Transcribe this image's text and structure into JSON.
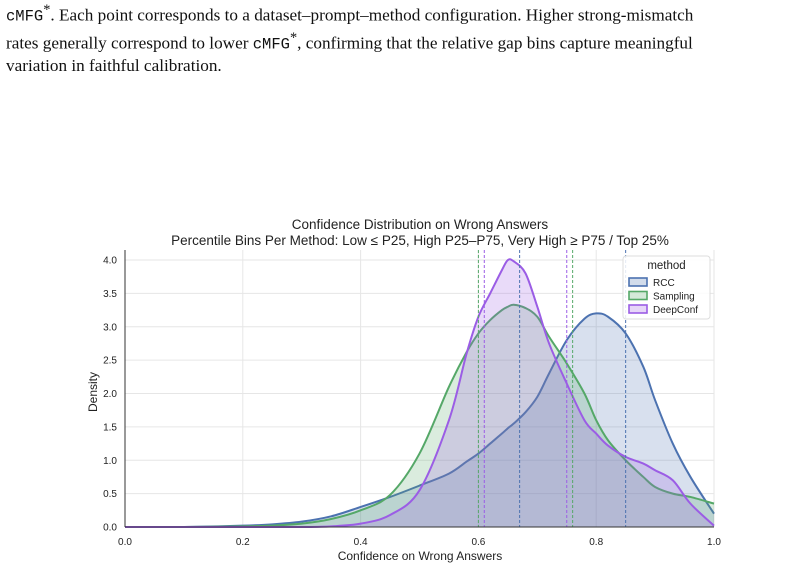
{
  "caption": {
    "line1_mono": "cMFG",
    "line1_sup": "*",
    "line1_text": ". Each point corresponds to a dataset–prompt–method configuration. Higher strong-mismatch",
    "line2_text_a": "rates generally correspond to lower ",
    "line2_mono": "cMFG",
    "line2_sup": "*",
    "line2_text_b": ", confirming that the relative gap bins capture meaningful",
    "line3_text": "variation in faithful calibration."
  },
  "chart_data": {
    "type": "area",
    "title": "Confidence Distribution on Wrong Answers",
    "subtitle": "Percentile Bins Per Method: Low ≤ P25, High P25–P75, Very High ≥ P75 / Top 25%",
    "xlabel": "Confidence on Wrong Answers",
    "ylabel": "Density",
    "xlim": [
      0.0,
      1.0
    ],
    "ylim": [
      0.0,
      4.15
    ],
    "xticks": [
      "0.0",
      "0.2",
      "0.4",
      "0.6",
      "0.8",
      "1.0"
    ],
    "yticks": [
      "0.0",
      "0.5",
      "1.0",
      "1.5",
      "2.0",
      "2.5",
      "3.0",
      "3.5",
      "4.0"
    ],
    "grid": true,
    "legend": {
      "title": "method",
      "placement": "top-right"
    },
    "x": [
      0.0,
      0.1,
      0.2,
      0.25,
      0.3,
      0.35,
      0.4,
      0.45,
      0.5,
      0.55,
      0.58,
      0.6,
      0.62,
      0.64,
      0.65,
      0.66,
      0.68,
      0.7,
      0.72,
      0.75,
      0.78,
      0.8,
      0.82,
      0.85,
      0.88,
      0.9,
      0.93,
      0.96,
      1.0
    ],
    "series": [
      {
        "name": "RCC",
        "color": "#4c72b0",
        "values": [
          0.0,
          0.0,
          0.02,
          0.04,
          0.08,
          0.16,
          0.3,
          0.45,
          0.62,
          0.8,
          0.98,
          1.1,
          1.25,
          1.4,
          1.48,
          1.55,
          1.72,
          1.95,
          2.3,
          2.8,
          3.12,
          3.2,
          3.15,
          2.9,
          2.4,
          1.9,
          1.25,
          0.75,
          0.2
        ],
        "percentiles": [
          0.67,
          0.85
        ]
      },
      {
        "name": "Sampling",
        "color": "#55a868",
        "values": [
          0.0,
          0.0,
          0.01,
          0.02,
          0.05,
          0.12,
          0.25,
          0.48,
          1.1,
          2.1,
          2.62,
          2.9,
          3.1,
          3.25,
          3.3,
          3.33,
          3.28,
          3.15,
          2.85,
          2.45,
          2.0,
          1.6,
          1.3,
          1.0,
          0.75,
          0.6,
          0.5,
          0.45,
          0.35
        ],
        "percentiles": [
          0.6,
          0.76
        ]
      },
      {
        "name": "DeepConf",
        "color": "#9b5de5",
        "values": [
          0.0,
          0.0,
          0.0,
          0.0,
          0.0,
          0.01,
          0.05,
          0.18,
          0.55,
          1.6,
          2.6,
          3.15,
          3.5,
          3.85,
          4.0,
          3.98,
          3.8,
          3.3,
          2.75,
          2.15,
          1.6,
          1.4,
          1.22,
          1.05,
          0.95,
          0.85,
          0.7,
          0.35,
          0.02
        ],
        "percentiles": [
          0.61,
          0.75
        ]
      }
    ]
  }
}
